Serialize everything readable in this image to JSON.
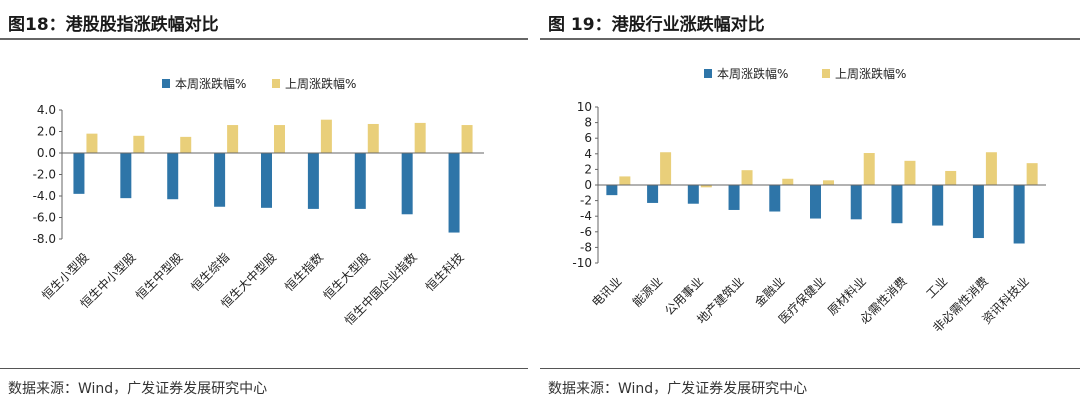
{
  "colors": {
    "this_week": "#2e75a8",
    "last_week": "#e9cf7a"
  },
  "left": {
    "title": "图18：港股股指涨跌幅对比",
    "source": "数据来源：Wind，广发证券发展研究中心"
  },
  "right": {
    "title": "图 19：港股行业涨跌幅对比",
    "source": "数据来源：Wind，广发证券发展研究中心"
  },
  "chart_data": [
    {
      "type": "bar",
      "title": "港股股指涨跌幅对比",
      "categories": [
        "恒生小型股",
        "恒生中小型股",
        "恒生中型股",
        "恒生综指",
        "恒生大中型股",
        "恒生指数",
        "恒生大型股",
        "恒生中国企业指数",
        "恒生科技"
      ],
      "series": [
        {
          "name": "本周涨跌幅%",
          "values": [
            -3.8,
            -4.2,
            -4.3,
            -5.0,
            -5.1,
            -5.2,
            -5.2,
            -5.7,
            -7.4
          ]
        },
        {
          "name": "上周涨跌幅%",
          "values": [
            1.8,
            1.6,
            1.5,
            2.6,
            2.6,
            3.1,
            2.7,
            2.8,
            2.6
          ]
        }
      ],
      "yticks": [
        "4.0",
        "2.0",
        "0.0",
        "-2.0",
        "-4.0",
        "-6.0",
        "-8.0"
      ],
      "ylim": [
        -8,
        4
      ],
      "legend": "top"
    },
    {
      "type": "bar",
      "title": "港股行业涨跌幅对比",
      "categories": [
        "电讯业",
        "能源业",
        "公用事业",
        "地产建筑业",
        "金融业",
        "医疗保健业",
        "原材料业",
        "必需性消费",
        "工业",
        "非必需性消费",
        "资讯科技业"
      ],
      "series": [
        {
          "name": "本周涨跌幅%",
          "values": [
            -1.3,
            -2.3,
            -2.4,
            -3.2,
            -3.4,
            -4.3,
            -4.4,
            -4.9,
            -5.2,
            -6.8,
            -7.5
          ]
        },
        {
          "name": "上周涨跌幅%",
          "values": [
            1.1,
            4.2,
            -0.3,
            1.9,
            0.8,
            0.6,
            4.1,
            3.1,
            1.8,
            4.2,
            2.8
          ]
        }
      ],
      "yticks": [
        "10",
        "8",
        "6",
        "4",
        "2",
        "0",
        "-2",
        "-4",
        "-6",
        "-8",
        "-10"
      ],
      "ylim": [
        -10,
        10
      ],
      "legend": "top"
    }
  ]
}
